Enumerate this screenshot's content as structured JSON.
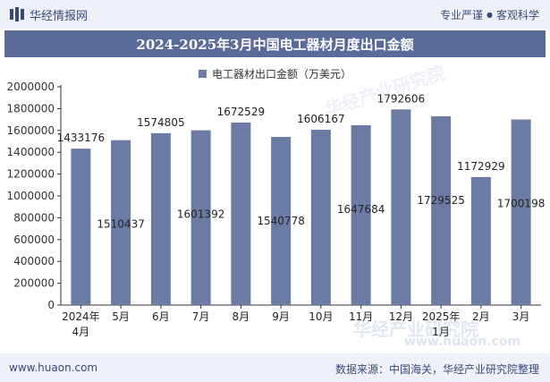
{
  "header": {
    "brand": "华经情报网",
    "tagline_left": "专业严谨",
    "tagline_sep": "●",
    "tagline_right": "客观科学"
  },
  "watermarks": [
    "华经产业研究院",
    "华经产业研究院",
    "www.huaon.com"
  ],
  "footer": {
    "website": "www.huaon.com",
    "source": "数据来源：中国海关，华经产业研究院整理"
  },
  "colors": {
    "bar": "#6b7ba4",
    "title_bg": "#5a6b9a",
    "band": "#eef1f8"
  },
  "chart_data": {
    "type": "bar",
    "title": "2024-2025年3月中国电工器材月度出口金额",
    "categories": [
      [
        "2024年",
        "4月"
      ],
      [
        "5月"
      ],
      [
        "6月"
      ],
      [
        "7月"
      ],
      [
        "8月"
      ],
      [
        "9月"
      ],
      [
        "10月"
      ],
      [
        "11月"
      ],
      [
        "12月"
      ],
      [
        "2025年",
        "1月"
      ],
      [
        "2月"
      ],
      [
        "3月"
      ]
    ],
    "series": [
      {
        "name": "电工器材出口金额（万美元）",
        "values": [
          1433176,
          1510437,
          1574805,
          1601392,
          1672529,
          1540778,
          1606167,
          1647684,
          1792606,
          1729525,
          1172929,
          1700198
        ]
      }
    ],
    "label_positions": [
      "top",
      "inside",
      "top",
      "inside",
      "top",
      "inside",
      "top",
      "inside",
      "top",
      "inside",
      "top",
      "inside"
    ],
    "ylim": [
      0,
      2000000
    ],
    "yticks": [
      0,
      200000,
      400000,
      600000,
      800000,
      1000000,
      1200000,
      1400000,
      1600000,
      1800000,
      2000000
    ],
    "grid": false,
    "legend_position": "top-center"
  }
}
